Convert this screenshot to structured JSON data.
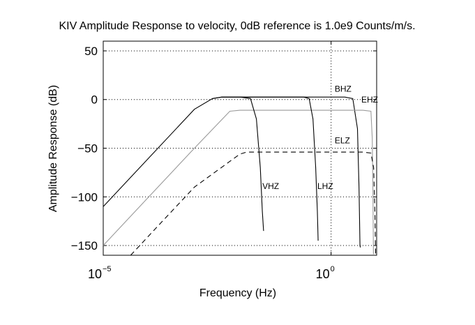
{
  "chart_data": {
    "type": "line",
    "title": "KIV Amplitude Response to velocity, 0dB reference is 1.0e9 Counts/m/s.",
    "xlabel": "Frequency (Hz)",
    "ylabel": "Amplitude Response (dB)",
    "x_scale": "log",
    "xlim": [
      1e-05,
      10
    ],
    "ylim": [
      -160,
      60
    ],
    "x_ticks": [
      {
        "value": 1e-05,
        "base": "10",
        "exp": "−5"
      },
      {
        "value": 1,
        "base": "10",
        "exp": "0"
      }
    ],
    "y_ticks": [
      {
        "value": 50,
        "label": "50"
      },
      {
        "value": 0,
        "label": "0"
      },
      {
        "value": -50,
        "label": "−50"
      },
      {
        "value": -100,
        "label": "−100"
      },
      {
        "value": -150,
        "label": "−150"
      }
    ],
    "grid": true,
    "series": [
      {
        "name": "BHZ",
        "color": "#000000",
        "dash": "none",
        "x": [
          1e-05,
          0.0001,
          0.001,
          0.0025,
          0.004,
          0.008,
          0.1,
          1,
          2,
          3,
          3.8,
          4.1,
          4.3,
          4.4
        ],
        "y": [
          -110,
          -60,
          -10,
          1,
          2.5,
          2.5,
          2.5,
          2.5,
          2.5,
          1,
          -30,
          -90,
          -150,
          -152
        ],
        "label_at": {
          "x": 1.2,
          "y": 8
        }
      },
      {
        "name": "EHZ",
        "color": "#999999",
        "dash": "none",
        "x": [
          1e-05,
          0.0001,
          0.001,
          0.006,
          0.01,
          0.1,
          1,
          5,
          7.5,
          8,
          8.3,
          8.5
        ],
        "y": [
          -150,
          -100,
          -50,
          -12,
          -11,
          -11,
          -11,
          -11,
          -12,
          -40,
          -100,
          -159
        ],
        "label_at": {
          "x": 4.6,
          "y": -3
        }
      },
      {
        "name": "ELZ",
        "color": "#000000",
        "dash": "7 5",
        "x": [
          4e-05,
          0.0001,
          0.001,
          0.01,
          0.014,
          0.1,
          1,
          5,
          7.5,
          8.6,
          9.2,
          9.5
        ],
        "y": [
          -160,
          -140,
          -90,
          -56,
          -54,
          -54,
          -54,
          -54,
          -55,
          -70,
          -120,
          -160
        ],
        "label_at": {
          "x": 1.2,
          "y": -45
        }
      },
      {
        "name": "VHZ",
        "color": "#000000",
        "dash": "none",
        "x": [
          0.0025,
          0.004,
          0.006,
          0.01,
          0.017,
          0.023,
          0.028,
          0.031,
          0.033
        ],
        "y": [
          1,
          2.5,
          2.5,
          2.5,
          1,
          -20,
          -70,
          -115,
          -135
        ],
        "label_at": {
          "x": 0.031,
          "y": -92
        }
      },
      {
        "name": "LHZ",
        "color": "#000000",
        "dash": "none",
        "x": [
          0.004,
          0.01,
          0.1,
          0.25,
          0.33,
          0.4,
          0.46,
          0.5,
          0.52
        ],
        "y": [
          2.5,
          2.5,
          2.5,
          2.5,
          1,
          -20,
          -70,
          -115,
          -145
        ],
        "label_at": {
          "x": 0.5,
          "y": -92
        }
      }
    ]
  }
}
